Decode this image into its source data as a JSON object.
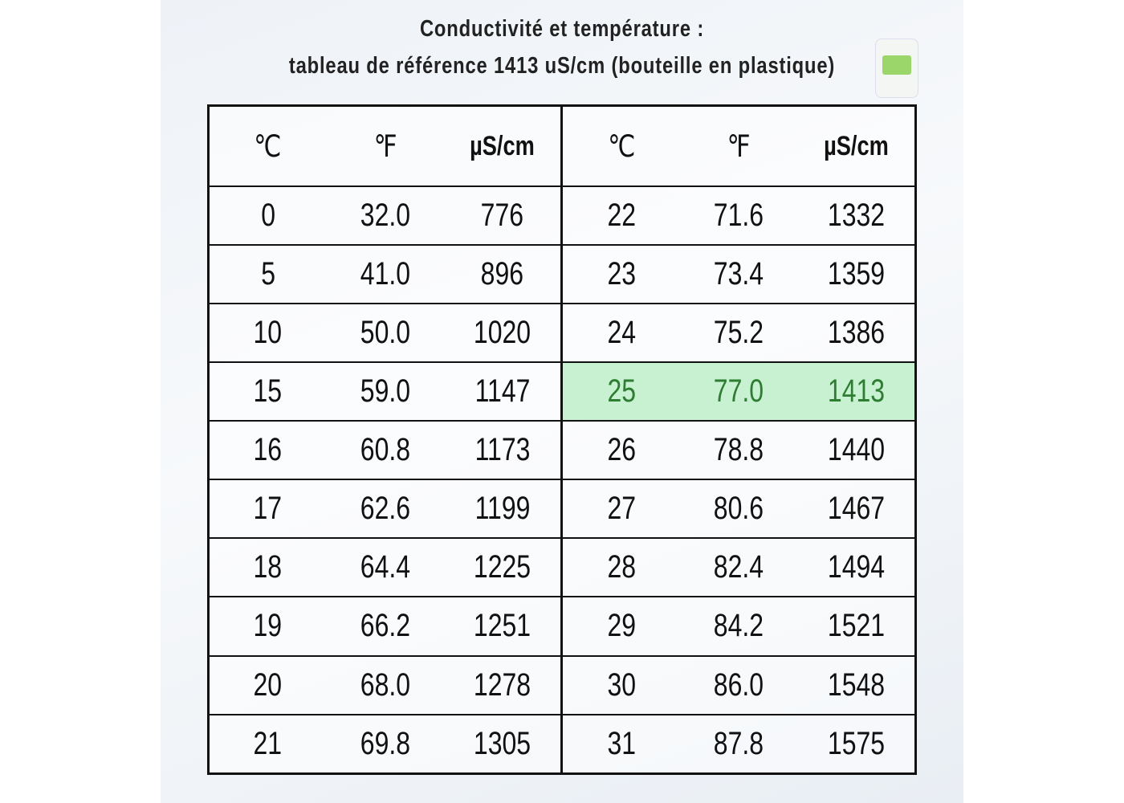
{
  "header": {
    "title": [
      "Conductivité et température :",
      "tableau de référence 1413 uS/cm (bouteille en plastique)"
    ]
  },
  "table": {
    "headers": [
      "℃",
      "℉",
      "µS/cm",
      "℃",
      "℉",
      "µS/cm"
    ],
    "rows": [
      [
        "0",
        "32.0",
        "776",
        "22",
        "71.6",
        "1332"
      ],
      [
        "5",
        "41.0",
        "896",
        "23",
        "73.4",
        "1359"
      ],
      [
        "10",
        "50.0",
        "1020",
        "24",
        "75.2",
        "1386"
      ],
      [
        "15",
        "59.0",
        "1147",
        "25",
        "77.0",
        "1413"
      ],
      [
        "16",
        "60.8",
        "1173",
        "26",
        "78.8",
        "1440"
      ],
      [
        "17",
        "62.6",
        "1199",
        "27",
        "80.6",
        "1467"
      ],
      [
        "18",
        "64.4",
        "1225",
        "28",
        "82.4",
        "1494"
      ],
      [
        "19",
        "66.2",
        "1251",
        "29",
        "84.2",
        "1521"
      ],
      [
        "20",
        "68.0",
        "1278",
        "30",
        "86.0",
        "1548"
      ],
      [
        "21",
        "69.8",
        "1305",
        "31",
        "87.8",
        "1575"
      ]
    ]
  }
}
